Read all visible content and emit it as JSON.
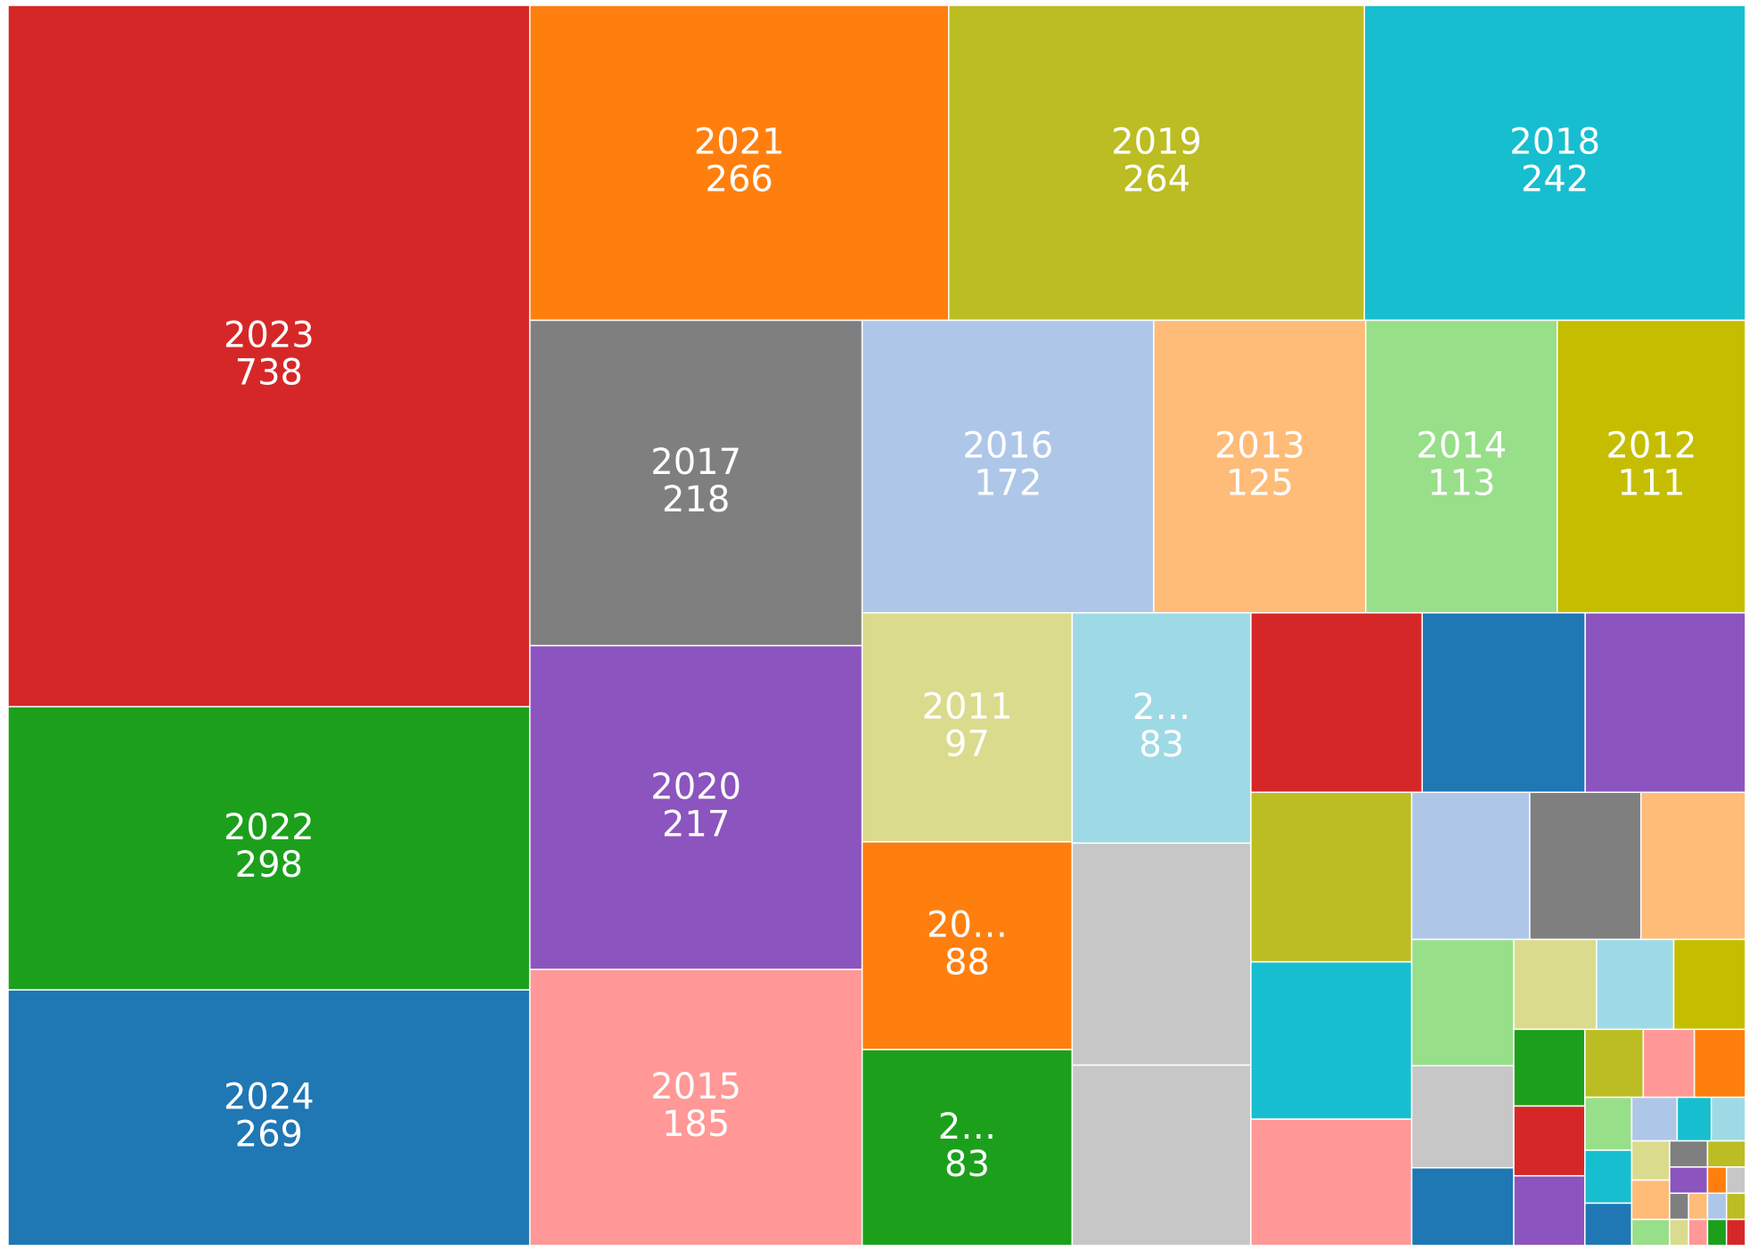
{
  "chart_data": {
    "type": "treemap",
    "categories": [
      "2023",
      "2022",
      "2024",
      "2021",
      "2019",
      "2018",
      "2017",
      "2020",
      "2015",
      "2016",
      "2013",
      "2014",
      "2012",
      "2011",
      "20…",
      "2…",
      "2…",
      null,
      null,
      null,
      null,
      null,
      null,
      null,
      null,
      null,
      null,
      null,
      null,
      null,
      null,
      null,
      null,
      null,
      null,
      null,
      null,
      null,
      null,
      null,
      null,
      null,
      null,
      null,
      null,
      null,
      null,
      null,
      null,
      null,
      null,
      null,
      null,
      null,
      null,
      null,
      null,
      null,
      null,
      null,
      null,
      null
    ],
    "values": [
      738,
      298,
      269,
      266,
      264,
      242,
      218,
      217,
      185,
      172,
      125,
      113,
      111,
      97,
      88,
      83,
      83,
      80,
      65,
      62,
      59,
      58,
      55,
      51,
      41,
      35,
      33,
      31,
      26,
      21,
      16,
      15,
      14,
      13,
      11,
      10,
      10,
      8,
      7,
      7,
      5,
      5,
      4,
      4,
      3,
      3,
      3,
      3,
      2,
      2,
      2,
      2,
      1,
      1,
      1,
      1,
      1,
      1,
      1,
      1,
      1,
      1
    ],
    "colors": [
      "#d62728",
      "#1ca01c",
      "#1f77b4",
      "#ff7f0e",
      "#bcbd22",
      "#17becf",
      "#7f7f7f",
      "#8c54be",
      "#ff9896",
      "#aec7e8",
      "#ffbb78",
      "#98df8a",
      "#c5be00",
      "#dbdb8d",
      "#ff7f0e",
      "#1ca01c",
      "#9edae5",
      "#c7c7c7",
      "#c7c7c7",
      "#d62728",
      "#1f77b4",
      "#8c54be",
      "#bcbd22",
      "#17becf",
      "#ff9896",
      "#aec7e8",
      "#7f7f7f",
      "#ffbb78",
      "#98df8a",
      "#c7c7c7",
      "#1f77b4",
      "#dbdb8d",
      "#9edae5",
      "#c5be00",
      "#1ca01c",
      "#d62728",
      "#8c54be",
      "#bcbd22",
      "#ff9896",
      "#ff7f0e",
      "#98df8a",
      "#17becf",
      "#1f77b4",
      "#aec7e8",
      "#17becf",
      "#9edae5",
      "#dbdb8d",
      "#ffbb78",
      "#98df8a",
      "#7f7f7f",
      "#bcbd22",
      "#8c54be",
      "#ff7f0e",
      "#c7c7c7",
      "#7f7f7f",
      "#dbdb8d",
      "#ffbb78",
      "#ff9896",
      "#aec7e8",
      "#bcbd22",
      "#1ca01c",
      "#d62728"
    ]
  }
}
